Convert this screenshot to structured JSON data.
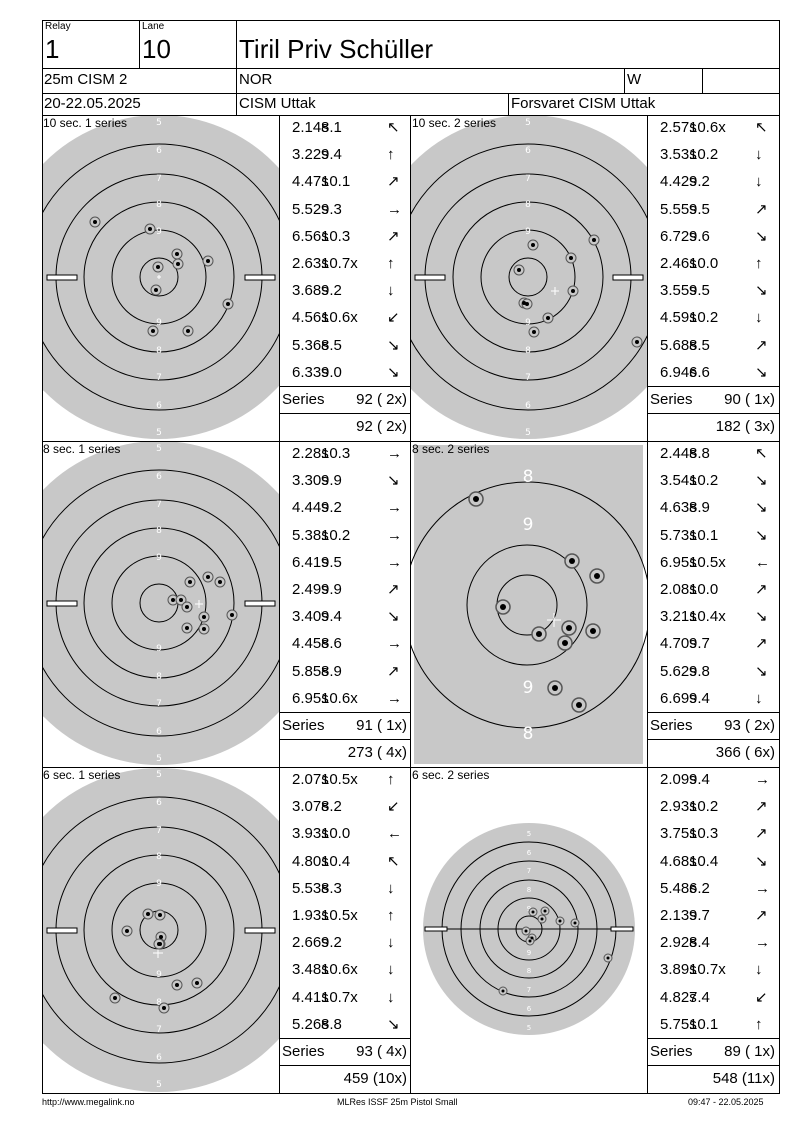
{
  "header": {
    "relay_label": "Relay",
    "relay": "1",
    "lane_label": "Lane",
    "lane": "10",
    "name": "Tiril Priv Schüller",
    "event": "25m CISM 2",
    "nation": "NOR",
    "gender": "W",
    "dates": "20-22.05.2025",
    "competition": "CISM Uttak",
    "club": "Forsvaret CISM Uttak"
  },
  "series_label": "Series",
  "series": [
    {
      "title": "10 sec. 1 series",
      "zoom": "normal",
      "shots": [
        [
          "2.14s",
          "8.1",
          "↖"
        ],
        [
          "3.22s",
          "9.4",
          "↑"
        ],
        [
          "4.47s",
          "10.1",
          "↗"
        ],
        [
          "5.52s",
          "9.3",
          "→"
        ],
        [
          "6.56s",
          "10.3",
          "↗"
        ],
        [
          "2.63s",
          "10.7x",
          "↑"
        ],
        [
          "3.68s",
          "9.2",
          "↓"
        ],
        [
          "4.56s",
          "10.6x",
          "↙"
        ],
        [
          "5.36s",
          "8.5",
          "↘"
        ],
        [
          "6.33s",
          "9.0",
          "↘"
        ]
      ],
      "series_total": "92 ( 2x)",
      "running_total": "92 ( 2x)"
    },
    {
      "title": "10 sec. 2 series",
      "zoom": "normal",
      "shots": [
        [
          "2.57s",
          "10.6x",
          "↖"
        ],
        [
          "3.53s",
          "10.2",
          "↓"
        ],
        [
          "4.42s",
          "9.2",
          "↓"
        ],
        [
          "5.55s",
          "9.5",
          "↗"
        ],
        [
          "6.72s",
          "9.6",
          "↘"
        ],
        [
          "2.46s",
          "10.0",
          "↑"
        ],
        [
          "3.55s",
          "9.5",
          "↘"
        ],
        [
          "4.59s",
          "10.2",
          "↓"
        ],
        [
          "5.68s",
          "8.5",
          "↗"
        ],
        [
          "6.94s",
          "6.6",
          "↘"
        ]
      ],
      "series_total": "90 ( 1x)",
      "running_total": "182 ( 3x)"
    },
    {
      "title": "8 sec. 1 series",
      "zoom": "normal",
      "shots": [
        [
          "2.28s",
          "10.3",
          "→"
        ],
        [
          "3.30s",
          "9.9",
          "↘"
        ],
        [
          "4.44s",
          "9.2",
          "→"
        ],
        [
          "5.38s",
          "10.2",
          "→"
        ],
        [
          "6.41s",
          "9.5",
          "→"
        ],
        [
          "2.49s",
          "9.9",
          "↗"
        ],
        [
          "3.40s",
          "9.4",
          "↘"
        ],
        [
          "4.45s",
          "8.6",
          "→"
        ],
        [
          "5.85s",
          "8.9",
          "↗"
        ],
        [
          "6.95s",
          "10.6x",
          "→"
        ]
      ],
      "series_total": "91 ( 1x)",
      "running_total": "273 ( 4x)"
    },
    {
      "title": "8 sec. 2 series",
      "zoom": "zoomed",
      "shots": [
        [
          "2.44s",
          "8.8",
          "↖"
        ],
        [
          "3.54s",
          "10.2",
          "↘"
        ],
        [
          "4.63s",
          "8.9",
          "↘"
        ],
        [
          "5.73s",
          "10.1",
          "↘"
        ],
        [
          "6.95s",
          "10.5x",
          "←"
        ],
        [
          "2.08s",
          "10.0",
          "↗"
        ],
        [
          "3.21s",
          "10.4x",
          "↘"
        ],
        [
          "4.70s",
          "9.7",
          "↗"
        ],
        [
          "5.62s",
          "9.8",
          "↘"
        ],
        [
          "6.69s",
          "9.4",
          "↓"
        ]
      ],
      "series_total": "93 ( 2x)",
      "running_total": "366 ( 6x)"
    },
    {
      "title": "6 sec. 1 series",
      "zoom": "normal",
      "shots": [
        [
          "2.07s",
          "10.5x",
          "↑"
        ],
        [
          "3.07s",
          "8.2",
          "↙"
        ],
        [
          "3.93s",
          "10.0",
          "←"
        ],
        [
          "4.80s",
          "10.4",
          "↖"
        ],
        [
          "5.53s",
          "8.3",
          "↓"
        ],
        [
          "1.93s",
          "10.5x",
          "↑"
        ],
        [
          "2.66s",
          "9.2",
          "↓"
        ],
        [
          "3.48s",
          "10.6x",
          "↓"
        ],
        [
          "4.41s",
          "10.7x",
          "↓"
        ],
        [
          "5.26s",
          "8.8",
          "↘"
        ]
      ],
      "series_total": "93 ( 4x)",
      "running_total": "459 (10x)"
    },
    {
      "title": "6 sec. 2 series",
      "zoom": "small",
      "shots": [
        [
          "2.09s",
          "9.4",
          "→"
        ],
        [
          "2.93s",
          "10.2",
          "↗"
        ],
        [
          "3.75s",
          "10.3",
          "↗"
        ],
        [
          "4.68s",
          "10.4",
          "↘"
        ],
        [
          "5.48s",
          "6.2",
          "→"
        ],
        [
          "2.13s",
          "9.7",
          "↗"
        ],
        [
          "2.92s",
          "8.4",
          "→"
        ],
        [
          "3.89s",
          "10.7x",
          "↓"
        ],
        [
          "4.82s",
          "7.4",
          "↙"
        ],
        [
          "5.75s",
          "10.1",
          "↑"
        ]
      ],
      "series_total": "89 ( 1x)",
      "running_total": "548 (11x)"
    }
  ],
  "footer": {
    "left": "http://www.megalink.no",
    "center": "MLRes ISSF 25m Pistol Small",
    "right": "09:47 - 22.05.2025"
  }
}
